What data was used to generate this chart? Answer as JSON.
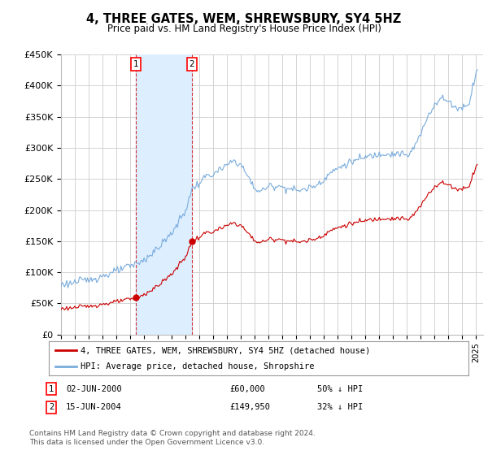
{
  "title": "4, THREE GATES, WEM, SHREWSBURY, SY4 5HZ",
  "subtitle": "Price paid vs. HM Land Registry's House Price Index (HPI)",
  "ylim": [
    0,
    450000
  ],
  "yticks": [
    0,
    50000,
    100000,
    150000,
    200000,
    250000,
    300000,
    350000,
    400000,
    450000
  ],
  "ytick_labels": [
    "£0",
    "£50K",
    "£100K",
    "£150K",
    "£200K",
    "£250K",
    "£300K",
    "£350K",
    "£400K",
    "£450K"
  ],
  "xlim_start": 1995.0,
  "xlim_end": 2025.5,
  "sale1_x": 2000.42,
  "sale1_y": 60000,
  "sale1_label": "02-JUN-2000",
  "sale1_price": "£60,000",
  "sale1_hpi": "50% ↓ HPI",
  "sale2_x": 2004.45,
  "sale2_y": 149950,
  "sale2_label": "15-JUN-2004",
  "sale2_price": "£149,950",
  "sale2_hpi": "32% ↓ HPI",
  "hpi_color": "#7aacdc",
  "price_color": "#cc0000",
  "shade_color": "#ddeeff",
  "grid_color": "#cccccc",
  "bg_color": "#ffffff",
  "legend_label_price": "4, THREE GATES, WEM, SHREWSBURY, SY4 5HZ (detached house)",
  "legend_label_hpi": "HPI: Average price, detached house, Shropshire",
  "footer": "Contains HM Land Registry data © Crown copyright and database right 2024.\nThis data is licensed under the Open Government Licence v3.0."
}
